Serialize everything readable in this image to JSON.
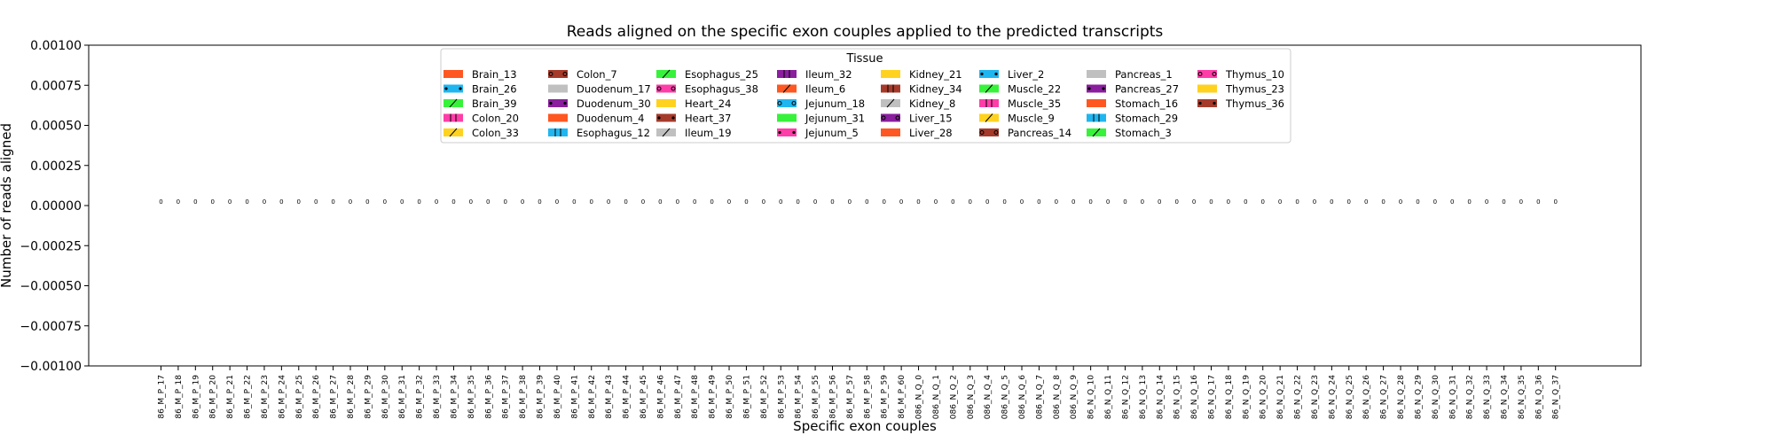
{
  "chart_data": {
    "type": "bar",
    "title": "Reads aligned on the specific exon couples applied to the predicted transcripts",
    "xlabel": "Specific exon couples",
    "ylabel": "Number of reads aligned",
    "ylim": [
      -0.001,
      0.001
    ],
    "yticks": [
      "0.00100",
      "0.00075",
      "0.00050",
      "0.00025",
      "0.00000",
      "−0.00025",
      "−0.00050",
      "−0.00075",
      "−0.00100"
    ],
    "ytick_values": [
      0.001,
      0.00075,
      0.0005,
      0.00025,
      0,
      -0.00025,
      -0.0005,
      -0.00075,
      -0.001
    ],
    "categories": [
      "86_M_P_17",
      "86_M_P_18",
      "86_M_P_19",
      "86_M_P_20",
      "86_M_P_21",
      "86_M_P_22",
      "86_M_P_23",
      "86_M_P_24",
      "86_M_P_25",
      "86_M_P_26",
      "86_M_P_27",
      "86_M_P_28",
      "86_M_P_29",
      "86_M_P_30",
      "86_M_P_31",
      "86_M_P_32",
      "86_M_P_33",
      "86_M_P_34",
      "86_M_P_35",
      "86_M_P_36",
      "86_M_P_37",
      "86_M_P_38",
      "86_M_P_39",
      "86_M_P_40",
      "86_M_P_41",
      "86_M_P_42",
      "86_M_P_43",
      "86_M_P_44",
      "86_M_P_45",
      "86_M_P_46",
      "86_M_P_47",
      "86_M_P_48",
      "86_M_P_49",
      "86_M_P_50",
      "86_M_P_51",
      "86_M_P_52",
      "86_M_P_53",
      "86_M_P_54",
      "86_M_P_55",
      "86_M_P_56",
      "86_M_P_57",
      "86_M_P_58",
      "86_M_P_59",
      "86_M_P_60",
      "086_N_Q_0",
      "086_N_Q_1",
      "086_N_Q_2",
      "086_N_Q_3",
      "086_N_Q_4",
      "086_N_Q_5",
      "086_N_Q_6",
      "086_N_Q_7",
      "086_N_Q_8",
      "086_N_Q_9",
      "86_N_Q_10",
      "86_N_Q_11",
      "86_N_Q_12",
      "86_N_Q_13",
      "86_N_Q_14",
      "86_N_Q_15",
      "86_N_Q_16",
      "86_N_Q_17",
      "86_N_Q_18",
      "86_N_Q_19",
      "86_N_Q_20",
      "86_N_Q_21",
      "86_N_Q_22",
      "86_N_Q_23",
      "86_N_Q_24",
      "86_N_Q_25",
      "86_N_Q_26",
      "86_N_Q_27",
      "86_N_Q_28",
      "86_N_Q_29",
      "86_N_Q_30",
      "86_N_Q_31",
      "86_N_Q_32",
      "86_N_Q_33",
      "86_N_Q_34",
      "86_N_Q_35",
      "86_N_Q_36",
      "86_N_Q_37"
    ],
    "values": [
      0,
      0,
      0,
      0,
      0,
      0,
      0,
      0,
      0,
      0,
      0,
      0,
      0,
      0,
      0,
      0,
      0,
      0,
      0,
      0,
      0,
      0,
      0,
      0,
      0,
      0,
      0,
      0,
      0,
      0,
      0,
      0,
      0,
      0,
      0,
      0,
      0,
      0,
      0,
      0,
      0,
      0,
      0,
      0,
      0,
      0,
      0,
      0,
      0,
      0,
      0,
      0,
      0,
      0,
      0,
      0,
      0,
      0,
      0,
      0,
      0,
      0,
      0,
      0,
      0,
      0,
      0,
      0,
      0,
      0,
      0,
      0,
      0,
      0,
      0,
      0,
      0,
      0,
      0,
      0,
      0,
      0
    ],
    "data_labels": [
      "0",
      "0",
      "0",
      "0",
      "0",
      "0",
      "0",
      "0",
      "0",
      "0",
      "0",
      "0",
      "0",
      "0",
      "0",
      "0",
      "0",
      "0",
      "0",
      "0",
      "0",
      "0",
      "0",
      "0",
      "0",
      "0",
      "0",
      "0",
      "0",
      "0",
      "0",
      "0",
      "0",
      "0",
      "0",
      "0",
      "0",
      "0",
      "0",
      "0",
      "0",
      "0",
      "0",
      "0",
      "0",
      "0",
      "0",
      "0",
      "0",
      "0",
      "0",
      "0",
      "0",
      "0",
      "0",
      "0",
      "0",
      "0",
      "0",
      "0",
      "0",
      "0",
      "0",
      "0",
      "0",
      "0",
      "0",
      "0",
      "0",
      "0",
      "0",
      "0",
      "0",
      "0",
      "0",
      "0",
      "0",
      "0",
      "0",
      "0",
      "0",
      "0"
    ],
    "grid": false,
    "legend": {
      "title": "Tissue",
      "placement": "top-center",
      "entries": [
        {
          "label": "Brain_13",
          "color": "#ff5722",
          "hatch": "none"
        },
        {
          "label": "Brain_26",
          "color": "#1fb6f0",
          "hatch": "dots"
        },
        {
          "label": "Brain_39",
          "color": "#37f23a",
          "hatch": "slash"
        },
        {
          "label": "Colon_20",
          "color": "#ff3da8",
          "hatch": "bars"
        },
        {
          "label": "Colon_33",
          "color": "#ffd21f",
          "hatch": "slash"
        },
        {
          "label": "Colon_7",
          "color": "#a63a2a",
          "hatch": "circles"
        },
        {
          "label": "Duodenum_17",
          "color": "#c0c0c0",
          "hatch": "none"
        },
        {
          "label": "Duodenum_30",
          "color": "#8a1e9e",
          "hatch": "dots"
        },
        {
          "label": "Duodenum_4",
          "color": "#ff5722",
          "hatch": "none"
        },
        {
          "label": "Esophagus_12",
          "color": "#1fb6f0",
          "hatch": "bars"
        },
        {
          "label": "Esophagus_25",
          "color": "#37f23a",
          "hatch": "slash"
        },
        {
          "label": "Esophagus_38",
          "color": "#ff3da8",
          "hatch": "circles"
        },
        {
          "label": "Heart_24",
          "color": "#ffd21f",
          "hatch": "none"
        },
        {
          "label": "Heart_37",
          "color": "#a63a2a",
          "hatch": "dots"
        },
        {
          "label": "Ileum_19",
          "color": "#c0c0c0",
          "hatch": "slash"
        },
        {
          "label": "Ileum_32",
          "color": "#8a1e9e",
          "hatch": "bars"
        },
        {
          "label": "Ileum_6",
          "color": "#ff5722",
          "hatch": "slash"
        },
        {
          "label": "Jejunum_18",
          "color": "#1fb6f0",
          "hatch": "circles"
        },
        {
          "label": "Jejunum_31",
          "color": "#37f23a",
          "hatch": "none"
        },
        {
          "label": "Jejunum_5",
          "color": "#ff3da8",
          "hatch": "dots"
        },
        {
          "label": "Kidney_21",
          "color": "#ffd21f",
          "hatch": "none"
        },
        {
          "label": "Kidney_34",
          "color": "#a63a2a",
          "hatch": "bars"
        },
        {
          "label": "Kidney_8",
          "color": "#c0c0c0",
          "hatch": "slash"
        },
        {
          "label": "Liver_15",
          "color": "#8a1e9e",
          "hatch": "circles"
        },
        {
          "label": "Liver_28",
          "color": "#ff5722",
          "hatch": "none"
        },
        {
          "label": "Liver_2",
          "color": "#1fb6f0",
          "hatch": "dots"
        },
        {
          "label": "Muscle_22",
          "color": "#37f23a",
          "hatch": "slash"
        },
        {
          "label": "Muscle_35",
          "color": "#ff3da8",
          "hatch": "bars"
        },
        {
          "label": "Muscle_9",
          "color": "#ffd21f",
          "hatch": "slash"
        },
        {
          "label": "Pancreas_14",
          "color": "#a63a2a",
          "hatch": "circles"
        },
        {
          "label": "Pancreas_1",
          "color": "#c0c0c0",
          "hatch": "none"
        },
        {
          "label": "Pancreas_27",
          "color": "#8a1e9e",
          "hatch": "dots"
        },
        {
          "label": "Stomach_16",
          "color": "#ff5722",
          "hatch": "none"
        },
        {
          "label": "Stomach_29",
          "color": "#1fb6f0",
          "hatch": "bars"
        },
        {
          "label": "Stomach_3",
          "color": "#37f23a",
          "hatch": "slash"
        },
        {
          "label": "Thymus_10",
          "color": "#ff3da8",
          "hatch": "circles"
        },
        {
          "label": "Thymus_23",
          "color": "#ffd21f",
          "hatch": "none"
        },
        {
          "label": "Thymus_36",
          "color": "#a63a2a",
          "hatch": "dots"
        }
      ]
    }
  }
}
